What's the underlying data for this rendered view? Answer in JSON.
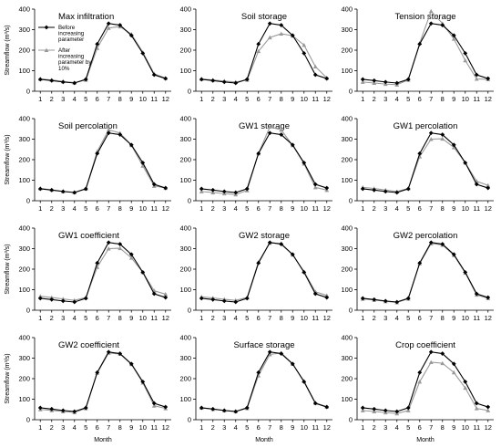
{
  "x_axis_label": "Month",
  "y_axis_label": "Streamflow (m³/s)",
  "legend": {
    "before_lines": [
      "Before",
      "increasing",
      "parameter"
    ],
    "after_lines": [
      "After",
      "increasing",
      "parameter by",
      "10%"
    ]
  },
  "colors": {
    "before": "#000000",
    "after": "#999999"
  },
  "chart_data": [
    {
      "type": "line",
      "title": "Max infiltration",
      "ylim": [
        0,
        400
      ],
      "yticks": [
        0,
        100,
        200,
        300,
        400
      ],
      "categories": [
        1,
        2,
        3,
        4,
        5,
        6,
        7,
        8,
        9,
        10,
        11,
        12
      ],
      "series": [
        {
          "name": "Before increasing parameter",
          "values": [
            58,
            52,
            45,
            40,
            58,
            230,
            330,
            322,
            272,
            185,
            80,
            62
          ]
        },
        {
          "name": "After increasing parameter by 10%",
          "values": [
            60,
            55,
            48,
            42,
            55,
            210,
            308,
            315,
            278,
            190,
            85,
            64
          ]
        }
      ]
    },
    {
      "type": "line",
      "title": "Soil storage",
      "ylim": [
        0,
        400
      ],
      "yticks": [
        0,
        100,
        200,
        300,
        400
      ],
      "categories": [
        1,
        2,
        3,
        4,
        5,
        6,
        7,
        8,
        9,
        10,
        11,
        12
      ],
      "series": [
        {
          "name": "Before increasing parameter",
          "values": [
            58,
            52,
            45,
            40,
            58,
            230,
            330,
            322,
            272,
            185,
            80,
            62
          ]
        },
        {
          "name": "After increasing parameter by 10%",
          "values": [
            60,
            55,
            50,
            45,
            55,
            195,
            262,
            280,
            270,
            225,
            120,
            65
          ]
        }
      ]
    },
    {
      "type": "line",
      "title": "Tension storage",
      "ylim": [
        0,
        400
      ],
      "yticks": [
        0,
        100,
        200,
        300,
        400
      ],
      "categories": [
        1,
        2,
        3,
        4,
        5,
        6,
        7,
        8,
        9,
        10,
        11,
        12
      ],
      "series": [
        {
          "name": "Before increasing parameter",
          "values": [
            58,
            52,
            45,
            40,
            58,
            230,
            330,
            322,
            272,
            185,
            80,
            62
          ]
        },
        {
          "name": "After increasing parameter by 10%",
          "values": [
            45,
            40,
            35,
            32,
            55,
            235,
            390,
            330,
            255,
            150,
            60,
            58
          ]
        }
      ]
    },
    {
      "type": "line",
      "title": "Soil percolation",
      "ylim": [
        0,
        400
      ],
      "yticks": [
        0,
        100,
        200,
        300,
        400
      ],
      "categories": [
        1,
        2,
        3,
        4,
        5,
        6,
        7,
        8,
        9,
        10,
        11,
        12
      ],
      "series": [
        {
          "name": "Before increasing parameter",
          "values": [
            58,
            52,
            45,
            40,
            58,
            230,
            330,
            322,
            272,
            185,
            80,
            62
          ]
        },
        {
          "name": "After increasing parameter by 10%",
          "values": [
            60,
            53,
            46,
            41,
            58,
            240,
            345,
            330,
            270,
            170,
            72,
            62
          ]
        }
      ]
    },
    {
      "type": "line",
      "title": "GW1 storage",
      "ylim": [
        0,
        400
      ],
      "yticks": [
        0,
        100,
        200,
        300,
        400
      ],
      "categories": [
        1,
        2,
        3,
        4,
        5,
        6,
        7,
        8,
        9,
        10,
        11,
        12
      ],
      "series": [
        {
          "name": "Before increasing parameter",
          "values": [
            58,
            52,
            45,
            40,
            58,
            230,
            330,
            322,
            272,
            185,
            80,
            62
          ]
        },
        {
          "name": "After increasing parameter by 10%",
          "values": [
            45,
            40,
            35,
            30,
            50,
            230,
            360,
            345,
            270,
            180,
            65,
            52
          ]
        }
      ]
    },
    {
      "type": "line",
      "title": "GW1 percolation",
      "ylim": [
        0,
        400
      ],
      "yticks": [
        0,
        100,
        200,
        300,
        400
      ],
      "categories": [
        1,
        2,
        3,
        4,
        5,
        6,
        7,
        8,
        9,
        10,
        11,
        12
      ],
      "series": [
        {
          "name": "Before increasing parameter",
          "values": [
            58,
            52,
            45,
            40,
            58,
            230,
            330,
            322,
            272,
            185,
            80,
            62
          ]
        },
        {
          "name": "After increasing parameter by 10%",
          "values": [
            65,
            60,
            52,
            45,
            60,
            215,
            300,
            302,
            260,
            185,
            95,
            75
          ]
        }
      ]
    },
    {
      "type": "line",
      "title": "GW1 coefficient",
      "ylim": [
        0,
        400
      ],
      "yticks": [
        0,
        100,
        200,
        300,
        400
      ],
      "categories": [
        1,
        2,
        3,
        4,
        5,
        6,
        7,
        8,
        9,
        10,
        11,
        12
      ],
      "series": [
        {
          "name": "Before increasing parameter",
          "values": [
            58,
            52,
            45,
            40,
            58,
            230,
            330,
            322,
            272,
            185,
            80,
            62
          ]
        },
        {
          "name": "After increasing parameter by 10%",
          "values": [
            68,
            62,
            55,
            48,
            62,
            210,
            300,
            302,
            255,
            185,
            95,
            78
          ]
        }
      ]
    },
    {
      "type": "line",
      "title": "GW2 storage",
      "ylim": [
        0,
        400
      ],
      "yticks": [
        0,
        100,
        200,
        300,
        400
      ],
      "categories": [
        1,
        2,
        3,
        4,
        5,
        6,
        7,
        8,
        9,
        10,
        11,
        12
      ],
      "series": [
        {
          "name": "Before increasing parameter",
          "values": [
            58,
            52,
            45,
            40,
            58,
            230,
            330,
            322,
            272,
            185,
            80,
            62
          ]
        },
        {
          "name": "After increasing parameter by 10%",
          "values": [
            65,
            60,
            53,
            48,
            62,
            235,
            328,
            325,
            270,
            188,
            90,
            72
          ]
        }
      ]
    },
    {
      "type": "line",
      "title": "GW2 percolation",
      "ylim": [
        0,
        400
      ],
      "yticks": [
        0,
        100,
        200,
        300,
        400
      ],
      "categories": [
        1,
        2,
        3,
        4,
        5,
        6,
        7,
        8,
        9,
        10,
        11,
        12
      ],
      "series": [
        {
          "name": "Before increasing parameter",
          "values": [
            58,
            52,
            45,
            40,
            58,
            230,
            330,
            322,
            272,
            185,
            80,
            62
          ]
        },
        {
          "name": "After increasing parameter by 10%",
          "values": [
            55,
            50,
            43,
            38,
            56,
            228,
            325,
            318,
            268,
            182,
            75,
            58
          ]
        }
      ]
    },
    {
      "type": "line",
      "title": "GW2 coefficient",
      "ylim": [
        0,
        400
      ],
      "yticks": [
        0,
        100,
        200,
        300,
        400
      ],
      "categories": [
        1,
        2,
        3,
        4,
        5,
        6,
        7,
        8,
        9,
        10,
        11,
        12
      ],
      "series": [
        {
          "name": "Before increasing parameter",
          "values": [
            58,
            52,
            45,
            40,
            58,
            230,
            330,
            322,
            272,
            185,
            80,
            62
          ]
        },
        {
          "name": "After increasing parameter by 10%",
          "values": [
            50,
            46,
            40,
            36,
            55,
            228,
            325,
            320,
            270,
            180,
            68,
            55
          ]
        }
      ]
    },
    {
      "type": "line",
      "title": "Surface storage",
      "ylim": [
        0,
        400
      ],
      "yticks": [
        0,
        100,
        200,
        300,
        400
      ],
      "categories": [
        1,
        2,
        3,
        4,
        5,
        6,
        7,
        8,
        9,
        10,
        11,
        12
      ],
      "series": [
        {
          "name": "Before increasing parameter",
          "values": [
            58,
            52,
            45,
            40,
            58,
            230,
            330,
            322,
            272,
            185,
            80,
            62
          ]
        },
        {
          "name": "After increasing parameter by 10%",
          "values": [
            58,
            52,
            45,
            40,
            56,
            215,
            318,
            325,
            272,
            188,
            82,
            63
          ]
        }
      ]
    },
    {
      "type": "line",
      "title": "Crop coefficient",
      "ylim": [
        0,
        400
      ],
      "yticks": [
        0,
        100,
        200,
        300,
        400
      ],
      "categories": [
        1,
        2,
        3,
        4,
        5,
        6,
        7,
        8,
        9,
        10,
        11,
        12
      ],
      "series": [
        {
          "name": "Before increasing parameter",
          "values": [
            58,
            52,
            45,
            40,
            58,
            230,
            330,
            322,
            272,
            185,
            80,
            62
          ]
        },
        {
          "name": "After increasing parameter by 10%",
          "values": [
            45,
            40,
            35,
            30,
            45,
            185,
            280,
            275,
            230,
            155,
            55,
            45
          ]
        }
      ]
    }
  ]
}
